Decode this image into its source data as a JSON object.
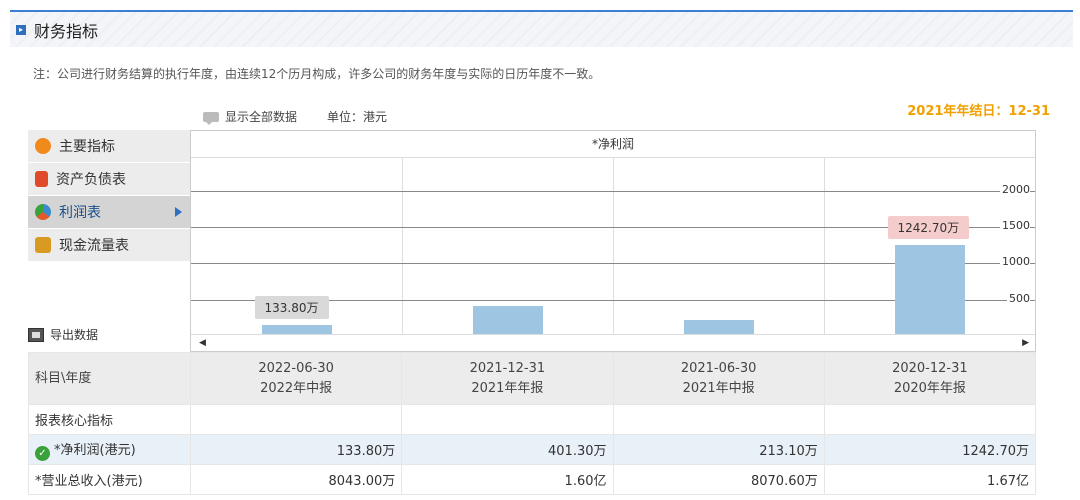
{
  "header": {
    "title": "财务指标",
    "title_icon": "arrow-right-square-icon"
  },
  "note": "注：公司进行财务结算的执行年度，由连续12个历月构成，许多公司的财务年度与实际的日历年度不一致。",
  "year_end": "2021年年结日：12-31",
  "toolbar": {
    "show_all": "显示全部数据",
    "unit": "单位：港元"
  },
  "sidebar": {
    "items": [
      {
        "label": "主要指标",
        "icon": "gear-icon",
        "color": "#f08a1a"
      },
      {
        "label": "资产负债表",
        "icon": "document-icon",
        "color": "#e04a2a"
      },
      {
        "label": "利润表",
        "icon": "pie-chart-icon",
        "color": "#3a8ad0"
      },
      {
        "label": "现金流量表",
        "icon": "coins-icon",
        "color": "#d89a20"
      }
    ]
  },
  "export_label": "导出数据",
  "chart_data": {
    "type": "bar",
    "title": "*净利润",
    "categories": [
      "2022-06-30",
      "2021-12-31",
      "2021-06-30",
      "2020-12-31"
    ],
    "values": [
      133.8,
      401.3,
      213.1,
      1242.7
    ],
    "data_labels": [
      "133.80万",
      "",
      "",
      "1242.70万"
    ],
    "yticks": [
      500,
      1000,
      1500,
      2000
    ],
    "ylim": [
      0,
      2450
    ],
    "bar_color": "#9ec5e2",
    "grid": true
  },
  "table": {
    "corner": "科目\\年度",
    "columns": [
      {
        "date": "2022-06-30",
        "report": "2022年中报"
      },
      {
        "date": "2021-12-31",
        "report": "2021年年报"
      },
      {
        "date": "2021-06-30",
        "report": "2021年中报"
      },
      {
        "date": "2020-12-31",
        "report": "2020年年报"
      }
    ],
    "section": "报表核心指标",
    "rows": [
      {
        "label": "*净利润(港元)",
        "values": [
          "133.80万",
          "401.30万",
          "213.10万",
          "1242.70万"
        ]
      },
      {
        "label": "*营业总收入(港元)",
        "values": [
          "8043.00万",
          "1.60亿",
          "8070.60万",
          "1.67亿"
        ]
      }
    ]
  }
}
